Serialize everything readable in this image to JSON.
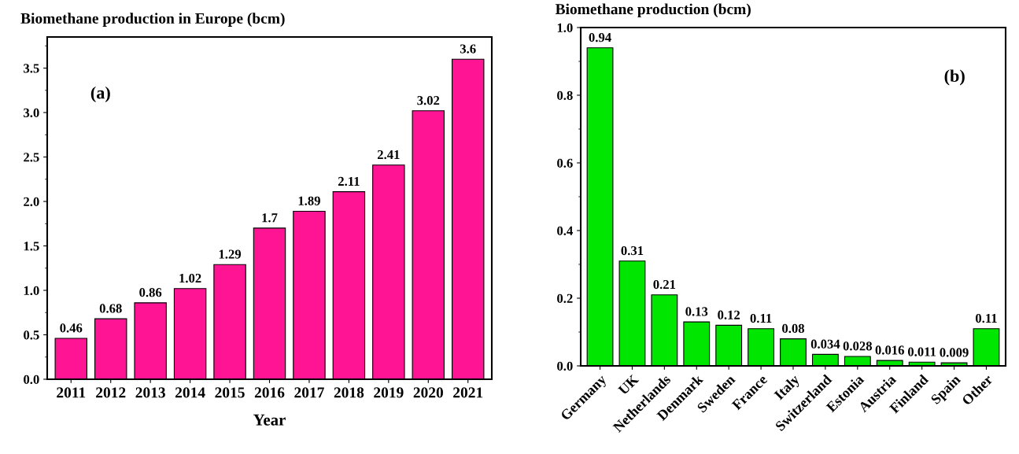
{
  "chart_data": [
    {
      "type": "bar",
      "title": "Biomethane production in Europe (bcm)",
      "xlabel": "Year",
      "categories": [
        "2011",
        "2012",
        "2013",
        "2014",
        "2015",
        "2016",
        "2017",
        "2018",
        "2019",
        "2020",
        "2021"
      ],
      "values": [
        0.46,
        0.68,
        0.86,
        1.02,
        1.29,
        1.7,
        1.89,
        2.11,
        2.41,
        3.02,
        3.6
      ],
      "color": "#ff1493",
      "data_labels": true,
      "ylim": [
        0,
        3.85
      ],
      "yticks": [
        {
          "value": 0,
          "label": "0.0"
        },
        0.5,
        {
          "value": 1,
          "label": "1.0"
        },
        1.5,
        {
          "value": 2,
          "label": "2.0"
        },
        2.5,
        {
          "value": 3,
          "label": "3.0"
        },
        3.5
      ],
      "grid": false,
      "annotations": [
        "(a)"
      ]
    },
    {
      "type": "bar",
      "title": "Biomethane production (bcm)",
      "categories": [
        "Germany",
        "UK",
        "Netherlands",
        "Denmark",
        "Sweden",
        "France",
        "Italy",
        "Switzerland",
        "Estonia",
        "Austria",
        "Finland",
        "Spain",
        "Other"
      ],
      "values": [
        0.94,
        0.31,
        0.21,
        0.13,
        0.12,
        0.11,
        0.08,
        0.034,
        0.028,
        0.016,
        0.011,
        0.009,
        0.11
      ],
      "color": "#00e600",
      "data_labels": true,
      "ylim": [
        0,
        1.0
      ],
      "yticks": [
        {
          "value": 0,
          "label": "0.0"
        },
        0.2,
        0.4,
        0.6,
        0.8,
        {
          "value": 1,
          "label": "1.0"
        }
      ],
      "grid": false,
      "annotations": [
        "(b)"
      ]
    }
  ]
}
